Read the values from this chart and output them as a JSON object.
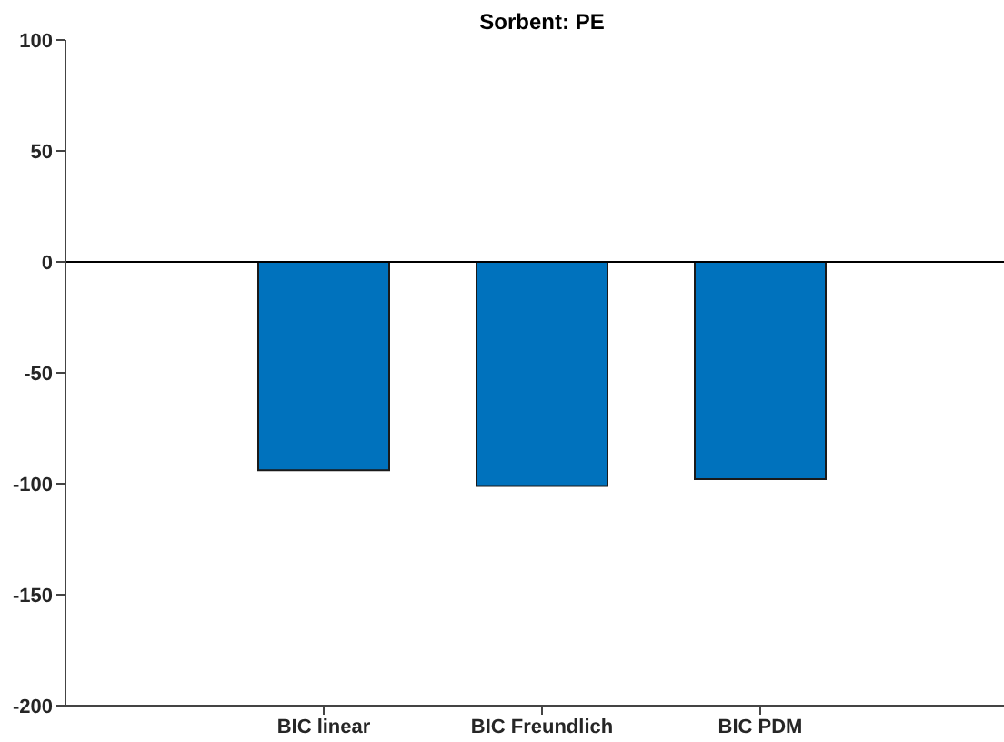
{
  "chart_data": {
    "type": "bar",
    "title": "Sorbent: PE",
    "categories": [
      "BIC linear",
      "BIC Freundlich",
      "BIC PDM"
    ],
    "values": [
      -94,
      -101,
      -98
    ],
    "color": "#0072bd",
    "ylim": [
      -200,
      100
    ],
    "yticks": [
      -200,
      -150,
      -100,
      -50,
      0,
      50,
      100
    ],
    "ref_lines": [
      {
        "axis": "y",
        "value": 0,
        "color": "#000000"
      }
    ],
    "grid": false
  }
}
